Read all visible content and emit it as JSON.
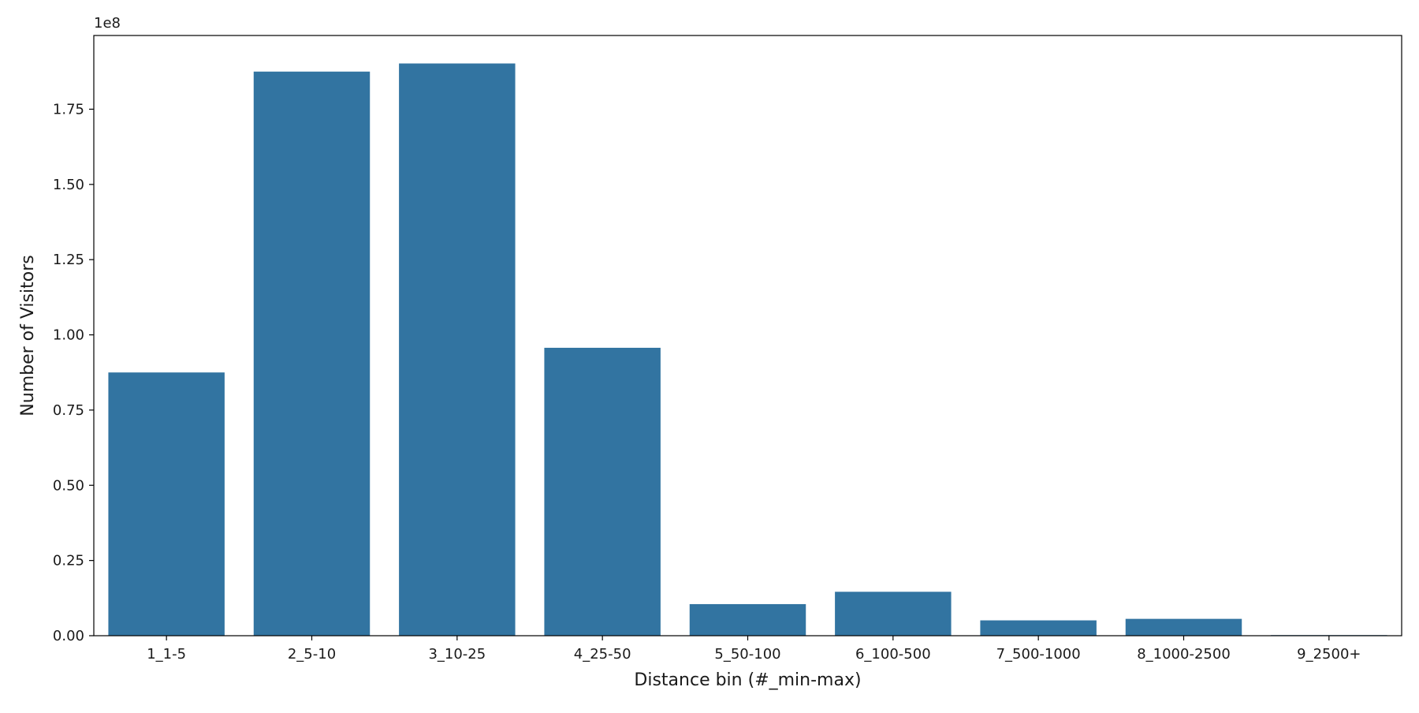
{
  "chart_data": {
    "type": "bar",
    "title": "",
    "xlabel": "Distance bin (#_min-max)",
    "ylabel": "Number of Visitors",
    "y_offset_label": "1e8",
    "categories": [
      "1_1-5",
      "2_5-10",
      "3_10-25",
      "4_25-50",
      "5_50-100",
      "6_100-500",
      "7_500-1000",
      "8_1000-2500",
      "9_2500+"
    ],
    "series": [
      {
        "values": [
          87500000,
          187500000,
          190200000,
          95700000,
          10500000,
          14600000,
          5100000,
          5600000,
          200000
        ]
      }
    ],
    "yticks": [
      0,
      25000000,
      50000000,
      75000000,
      100000000,
      125000000,
      150000000,
      175000000
    ],
    "ytick_labels": [
      "0.00",
      "0.25",
      "0.50",
      "0.75",
      "1.00",
      "1.25",
      "1.50",
      "1.75"
    ],
    "ylim": [
      0,
      199500000
    ],
    "bar_color": "#3274a1",
    "grid": false,
    "legend": "none"
  }
}
